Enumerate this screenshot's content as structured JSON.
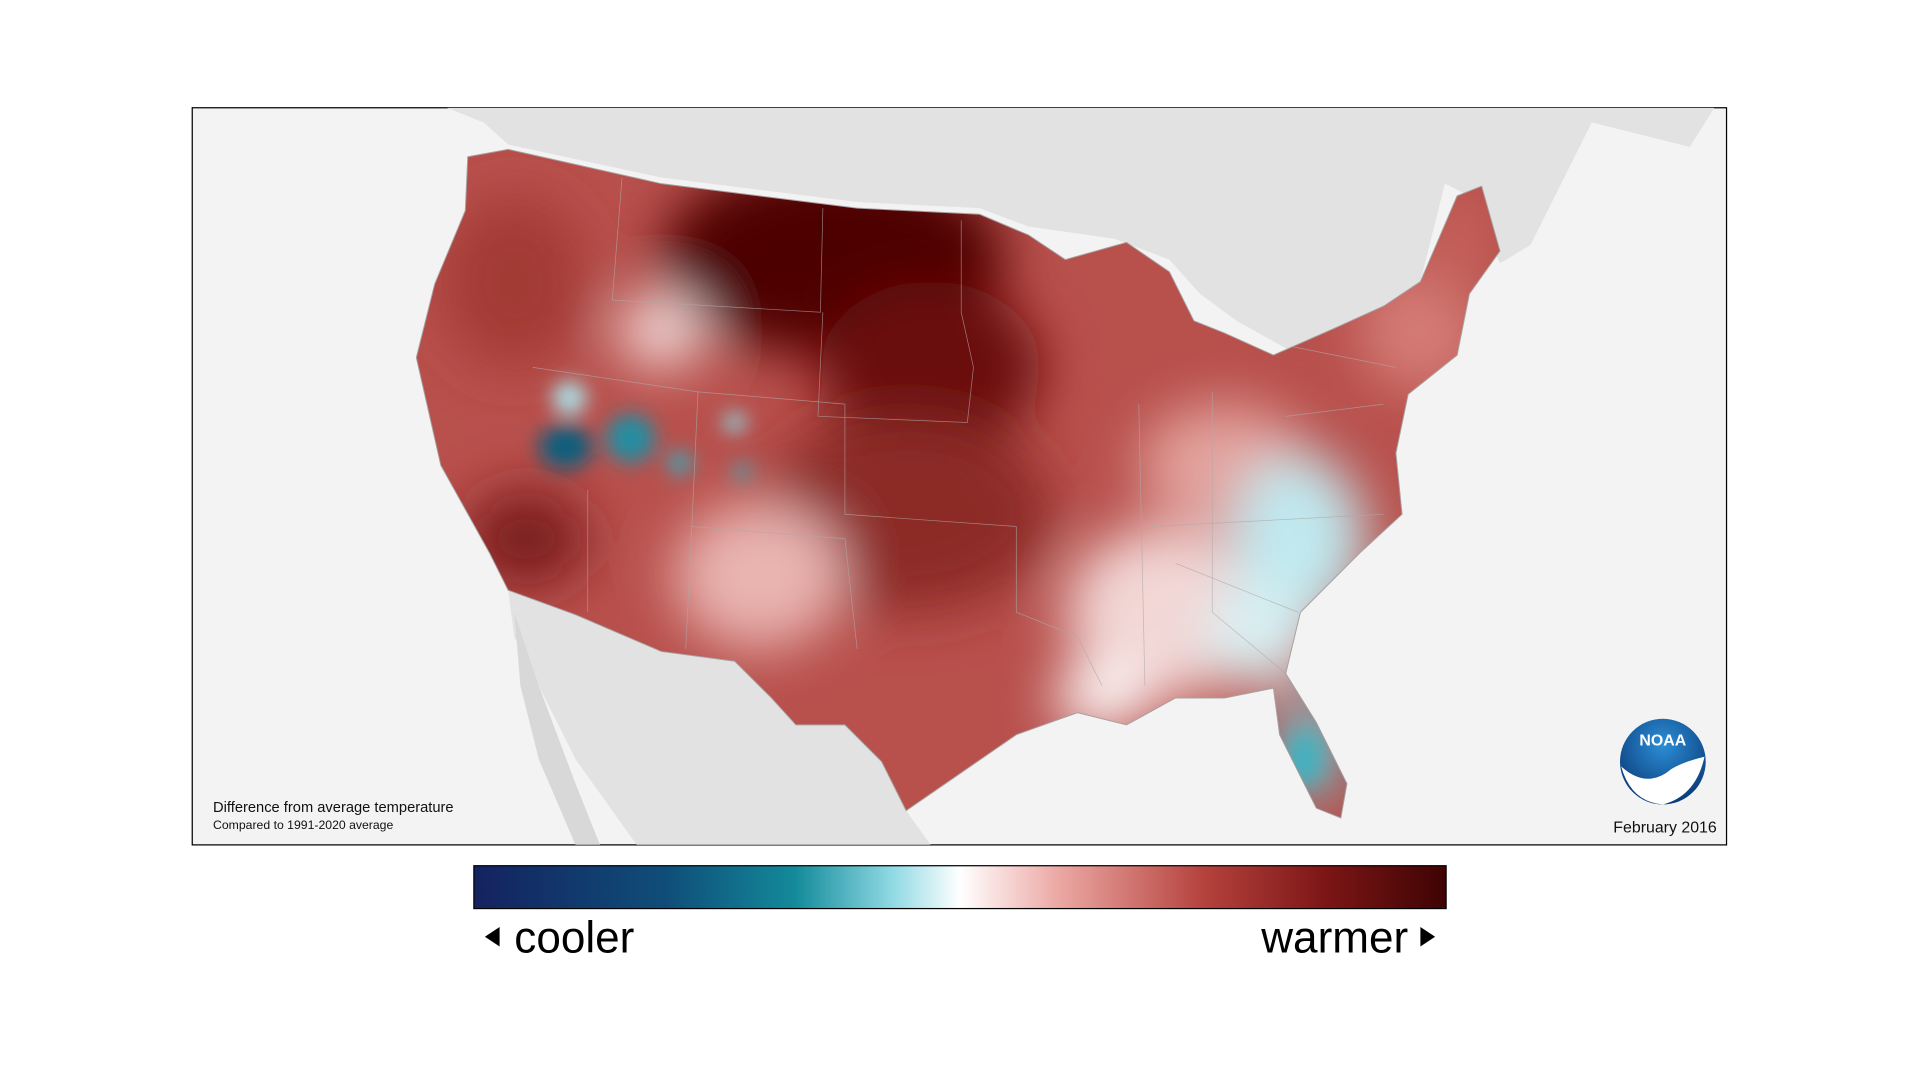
{
  "map": {
    "caption_title": "Difference from average temperature",
    "caption_subtitle": "Compared to 1991-2020 average",
    "date": "February 2016",
    "logo": "NOAA"
  },
  "legend": {
    "low_label": "cooler",
    "high_label": "warmer"
  }
}
